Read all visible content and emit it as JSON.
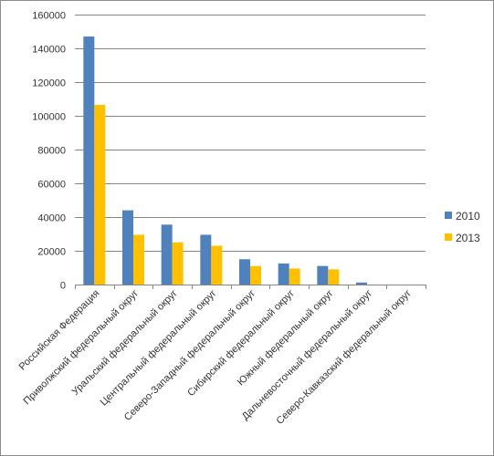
{
  "chart_data": {
    "type": "bar",
    "title": "",
    "xlabel": "",
    "ylabel": "",
    "ylim": [
      0,
      160000
    ],
    "yticks": [
      0,
      20000,
      40000,
      60000,
      80000,
      100000,
      120000,
      140000,
      160000
    ],
    "grid": true,
    "legend_position": "right",
    "categories": [
      "Российская Федерация",
      "Приволжский федеральный округ",
      "Уральский федеральный округ",
      "Центральный федеральный округ",
      "Северо-Западный федеральный округ",
      "Сибирский федеральный округ",
      "Южный федеральный  округ",
      "Дальневосточный федеральный округ",
      "Северо-Кавказский федеральный округ"
    ],
    "series": [
      {
        "name": "2010",
        "color": "#4f81bd",
        "values": [
          147000,
          44000,
          35500,
          29500,
          15000,
          12500,
          11000,
          1200,
          0
        ]
      },
      {
        "name": "2013",
        "color": "#ffc000",
        "values": [
          106500,
          29500,
          25000,
          23000,
          11000,
          9500,
          9000,
          0,
          0
        ]
      }
    ]
  }
}
